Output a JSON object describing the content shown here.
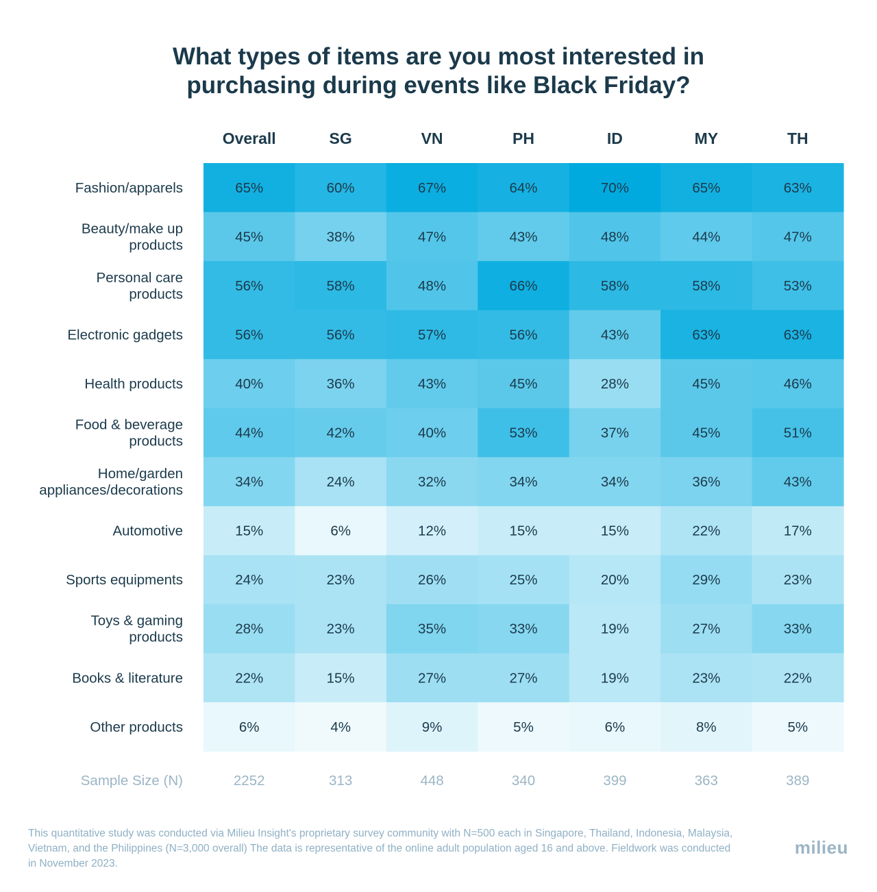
{
  "chart_data": {
    "type": "heatmap",
    "title": [
      "What types of items are you most interested in",
      "purchasing during events like Black Friday?"
    ],
    "columns": [
      "Overall",
      "SG",
      "VN",
      "PH",
      "ID",
      "MY",
      "TH"
    ],
    "rows": [
      {
        "label": [
          "Fashion/apparels"
        ],
        "values": [
          65,
          60,
          67,
          64,
          70,
          65,
          63
        ]
      },
      {
        "label": [
          "Beauty/make up",
          "products"
        ],
        "values": [
          45,
          38,
          47,
          43,
          48,
          44,
          47
        ]
      },
      {
        "label": [
          "Personal care",
          "products"
        ],
        "values": [
          56,
          58,
          48,
          66,
          58,
          58,
          53
        ]
      },
      {
        "label": [
          "Electronic gadgets"
        ],
        "values": [
          56,
          56,
          57,
          56,
          43,
          63,
          63
        ]
      },
      {
        "label": [
          "Health products"
        ],
        "values": [
          40,
          36,
          43,
          45,
          28,
          45,
          46
        ]
      },
      {
        "label": [
          "Food & beverage",
          "products"
        ],
        "values": [
          44,
          42,
          40,
          53,
          37,
          45,
          51
        ]
      },
      {
        "label": [
          "Home/garden",
          "appliances/decorations"
        ],
        "values": [
          34,
          24,
          32,
          34,
          34,
          36,
          43
        ]
      },
      {
        "label": [
          "Automotive"
        ],
        "values": [
          15,
          6,
          12,
          15,
          15,
          22,
          17
        ]
      },
      {
        "label": [
          "Sports equipments"
        ],
        "values": [
          24,
          23,
          26,
          25,
          20,
          29,
          23
        ]
      },
      {
        "label": [
          "Toys & gaming",
          "products"
        ],
        "values": [
          28,
          23,
          35,
          33,
          19,
          27,
          33
        ]
      },
      {
        "label": [
          "Books & literature"
        ],
        "values": [
          22,
          15,
          27,
          27,
          19,
          23,
          22
        ]
      },
      {
        "label": [
          "Other products"
        ],
        "values": [
          6,
          4,
          9,
          5,
          6,
          8,
          5
        ]
      }
    ],
    "value_suffix": "%",
    "sample_size_label": "Sample Size (N)",
    "sample_sizes": [
      2252,
      313,
      448,
      340,
      399,
      363,
      389
    ],
    "color_scale": {
      "low": "#ffffff",
      "high": "#00aadf",
      "min": 0,
      "max": 70
    }
  },
  "footnote": "This quantitative study was conducted via Milieu Insight's proprietary survey community with N=500 each in Singapore, Thailand, Indonesia, Malaysia, Vietnam, and the Philippines (N=3,000 overall) The data is representative of the online adult population aged 16 and above. Fieldwork was conducted in November 2023.",
  "brand": "milieu",
  "colors": {
    "text": "#1b3a4b",
    "muted": "#9bb5c5"
  }
}
